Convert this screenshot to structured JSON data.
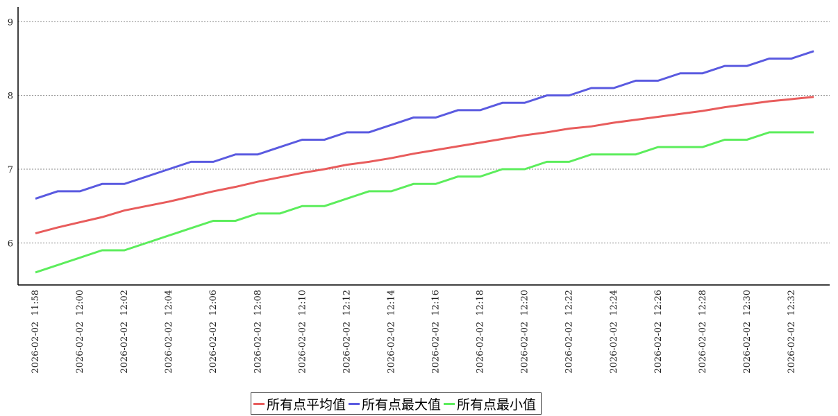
{
  "chart_data": {
    "type": "line",
    "categories": [
      "2026-02-02  11:58",
      null,
      "2026-02-02  12:00",
      null,
      "2026-02-02  12:02",
      null,
      "2026-02-02  12:04",
      null,
      "2026-02-02  12:06",
      null,
      "2026-02-02  12:08",
      null,
      "2026-02-02  12:10",
      null,
      "2026-02-02  12:12",
      null,
      "2026-02-02  12:14",
      null,
      "2026-02-02  12:16",
      null,
      "2026-02-02  12:18",
      null,
      "2026-02-02  12:20",
      null,
      "2026-02-02  12:22",
      null,
      "2026-02-02  12:24",
      null,
      "2026-02-02  12:26",
      null,
      "2026-02-02  12:28",
      null,
      "2026-02-02  12:30",
      null,
      "2026-02-02  12:32",
      null
    ],
    "series": [
      {
        "name": "所有点平均值",
        "color": "#e85c5c",
        "values": [
          6.13,
          6.21,
          6.28,
          6.35,
          6.44,
          6.5,
          6.56,
          6.63,
          6.7,
          6.76,
          6.83,
          6.89,
          6.95,
          7.0,
          7.06,
          7.1,
          7.15,
          7.21,
          7.26,
          7.31,
          7.36,
          7.41,
          7.46,
          7.5,
          7.55,
          7.58,
          7.63,
          7.67,
          7.71,
          7.75,
          7.79,
          7.84,
          7.88,
          7.92,
          7.95,
          7.98
        ]
      },
      {
        "name": "所有点最大值",
        "color": "#5a5ae0",
        "values": [
          6.6,
          6.7,
          6.7,
          6.8,
          6.8,
          6.9,
          7.0,
          7.1,
          7.1,
          7.2,
          7.2,
          7.3,
          7.4,
          7.4,
          7.5,
          7.5,
          7.6,
          7.7,
          7.7,
          7.8,
          7.8,
          7.9,
          7.9,
          8.0,
          8.0,
          8.1,
          8.1,
          8.2,
          8.2,
          8.3,
          8.3,
          8.4,
          8.4,
          8.5,
          8.5,
          8.6
        ]
      },
      {
        "name": "所有点最小值",
        "color": "#5ced5c",
        "values": [
          5.6,
          5.7,
          5.8,
          5.9,
          5.9,
          6.0,
          6.1,
          6.2,
          6.3,
          6.3,
          6.4,
          6.4,
          6.5,
          6.5,
          6.6,
          6.7,
          6.7,
          6.8,
          6.8,
          6.9,
          6.9,
          7.0,
          7.0,
          7.1,
          7.1,
          7.2,
          7.2,
          7.2,
          7.3,
          7.3,
          7.3,
          7.4,
          7.4,
          7.5,
          7.5,
          7.5
        ]
      }
    ],
    "ylim": [
      5.43,
      9.2
    ],
    "yticks": [
      6,
      7,
      8,
      9
    ],
    "grid": true,
    "legend": "bottom"
  }
}
